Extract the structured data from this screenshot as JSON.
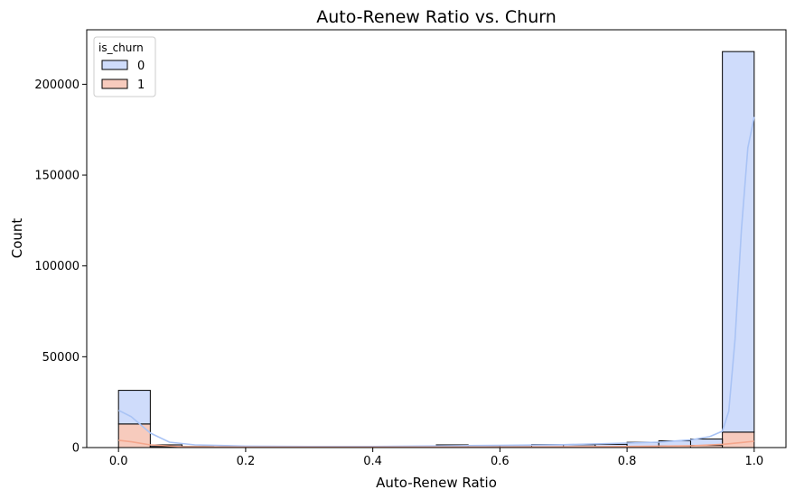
{
  "chart_data": {
    "type": "histogram",
    "title": "Auto-Renew Ratio vs. Churn",
    "xlabel": "Auto-Renew Ratio",
    "ylabel": "Count",
    "xlim": [
      -0.05,
      1.05
    ],
    "ylim": [
      0,
      230000
    ],
    "xticks": [
      0.0,
      0.2,
      0.4,
      0.6,
      0.8,
      1.0
    ],
    "xtick_labels": [
      "0.0",
      "0.2",
      "0.4",
      "0.6",
      "0.8",
      "1.0"
    ],
    "yticks": [
      0,
      50000,
      100000,
      150000,
      200000
    ],
    "ytick_labels": [
      "0",
      "50000",
      "100000",
      "150000",
      "200000"
    ],
    "stacked": true,
    "kde": true,
    "grid": false,
    "bin_edges": [
      0.0,
      0.05,
      0.1,
      0.15,
      0.2,
      0.25,
      0.3,
      0.35,
      0.4,
      0.45,
      0.5,
      0.55,
      0.6,
      0.65,
      0.7,
      0.75,
      0.8,
      0.85,
      0.9,
      0.95,
      1.0
    ],
    "legend": {
      "title": "is_churn",
      "position": "upper-left"
    },
    "series": [
      {
        "name": "1",
        "color": "#f7cbbd",
        "kde_color": "#f4a68c",
        "values": [
          13000,
          600,
          300,
          200,
          150,
          150,
          150,
          150,
          150,
          150,
          300,
          300,
          300,
          400,
          400,
          500,
          700,
          900,
          1200,
          8500
        ]
      },
      {
        "name": "0",
        "color": "#cfdcfb",
        "kde_color": "#a9c3f5",
        "values": [
          18500,
          900,
          300,
          200,
          200,
          200,
          200,
          200,
          200,
          200,
          1200,
          800,
          900,
          1300,
          1200,
          1300,
          2200,
          2800,
          3500,
          209500
        ]
      }
    ],
    "kde_curves": [
      {
        "name": "0",
        "x": [
          0.0,
          0.02,
          0.05,
          0.08,
          0.12,
          0.2,
          0.3,
          0.4,
          0.5,
          0.55,
          0.6,
          0.7,
          0.8,
          0.85,
          0.9,
          0.93,
          0.95,
          0.96,
          0.97,
          0.98,
          0.99,
          1.0
        ],
        "y": [
          20500,
          17000,
          8000,
          3000,
          1500,
          800,
          600,
          600,
          900,
          1100,
          1200,
          1600,
          2500,
          3000,
          4200,
          6000,
          9000,
          20000,
          60000,
          120000,
          165000,
          182000
        ]
      },
      {
        "name": "1",
        "x": [
          0.0,
          0.02,
          0.05,
          0.1,
          0.2,
          0.4,
          0.6,
          0.8,
          0.9,
          0.95,
          0.98,
          1.0
        ],
        "y": [
          4000,
          3200,
          1500,
          500,
          200,
          200,
          300,
          600,
          1000,
          1800,
          2800,
          3500
        ]
      }
    ]
  }
}
